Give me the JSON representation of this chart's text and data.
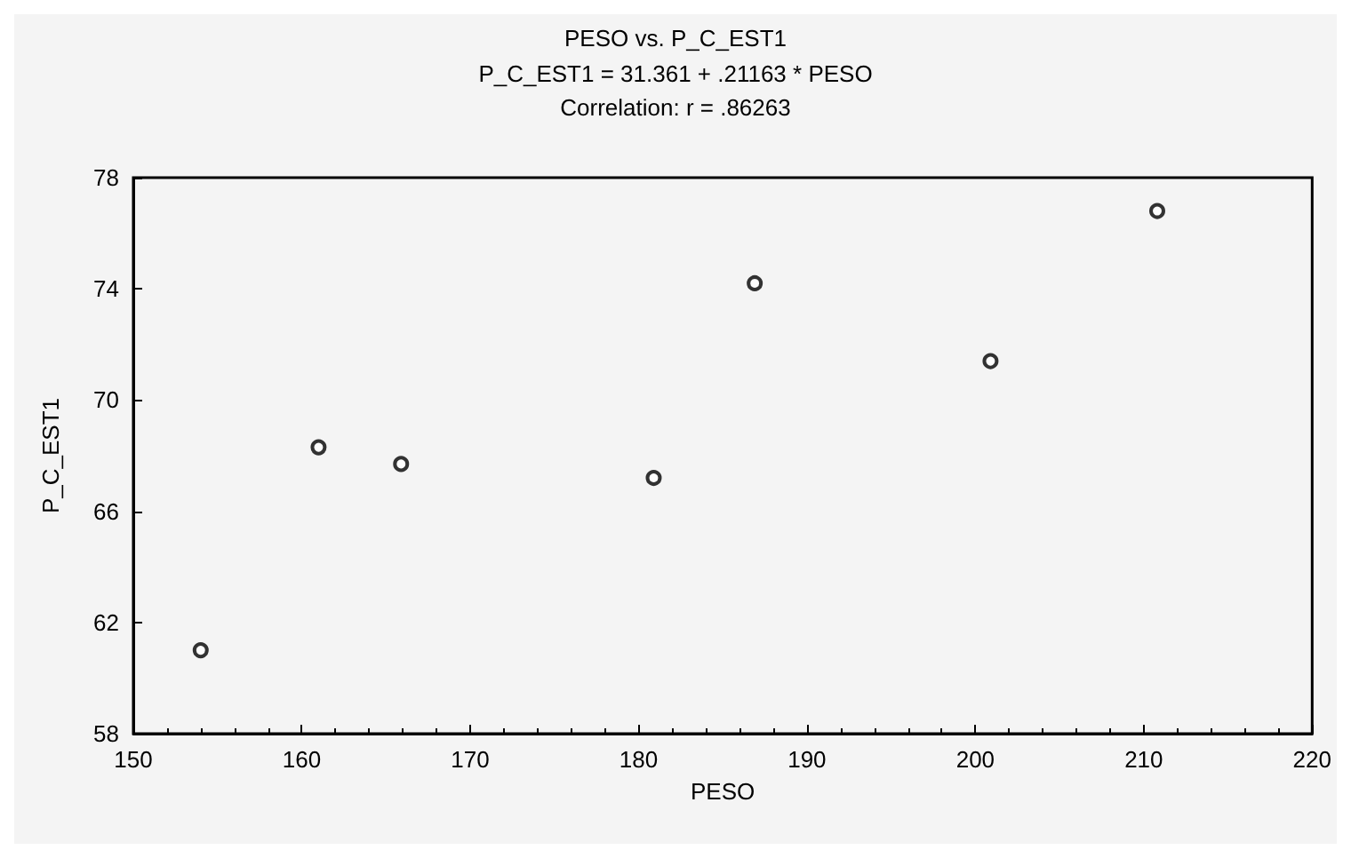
{
  "chart_data": {
    "type": "scatter",
    "title": "PESO vs. P_C_EST1",
    "subtitle": "P_C_EST1 = 31.361 + .21163 * PESO\nCorrelation: r = .86263",
    "xlabel": "PESO",
    "ylabel": "P_C_EST1",
    "x": [
      154,
      161,
      165.9,
      180.9,
      186.9,
      200.9,
      210.8
    ],
    "values": [
      61.0,
      68.3,
      67.7,
      67.2,
      74.2,
      71.4,
      76.8
    ],
    "color": "#000000",
    "marker": "circle",
    "grid": false,
    "xlim": [
      150,
      220
    ],
    "xticks": [
      150,
      160,
      170,
      180,
      190,
      200,
      210,
      220
    ],
    "ylim": [
      58,
      78
    ],
    "yticks": [
      58,
      62,
      66,
      70,
      74,
      78
    ]
  }
}
